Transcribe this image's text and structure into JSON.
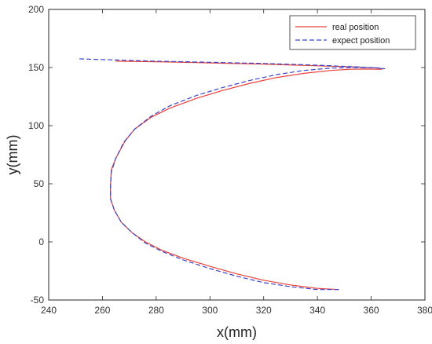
{
  "chart_data": {
    "type": "line",
    "title": "",
    "xlabel": "x(mm)",
    "ylabel": "y(mm)",
    "xlim": [
      240,
      380
    ],
    "ylim": [
      -50,
      200
    ],
    "xticks": [
      240,
      260,
      280,
      300,
      320,
      340,
      360,
      380
    ],
    "yticks": [
      -50,
      0,
      50,
      100,
      150,
      200
    ],
    "grid": false,
    "legend_position": "top-right",
    "series": [
      {
        "name": "real position",
        "color": "#e8403a",
        "style": "solid",
        "x": [
          348,
          340,
          330,
          320,
          310,
          300,
          290,
          282,
          276,
          271,
          267,
          264.5,
          263,
          263,
          263.3,
          265,
          268.5,
          272,
          278,
          285,
          295,
          305,
          315,
          325,
          335,
          345,
          352,
          358,
          362,
          364,
          363,
          355,
          340,
          320,
          300,
          280,
          265
        ],
        "y": [
          -41,
          -40,
          -37,
          -33,
          -27.5,
          -21,
          -14,
          -7,
          0,
          8,
          17,
          27,
          37,
          48,
          62,
          72,
          87,
          97,
          107,
          115,
          123.5,
          130.5,
          136.5,
          141.5,
          145,
          147.5,
          148.5,
          148.7,
          148.5,
          148.5,
          149.5,
          150.5,
          151.5,
          153,
          154,
          155,
          155.5
        ]
      },
      {
        "name": "expect position",
        "color": "#3b45c8",
        "style": "dashed",
        "x": [
          348,
          340,
          330,
          320,
          310,
          300,
          290,
          282,
          276,
          271,
          267,
          264.5,
          263,
          263,
          263.3,
          265,
          268,
          272,
          278,
          285,
          295,
          305,
          315,
          325,
          335,
          345,
          352,
          358,
          362,
          365,
          360,
          350,
          340,
          320,
          300,
          280,
          265,
          251
        ],
        "y": [
          -41,
          -41,
          -38.5,
          -35,
          -29.5,
          -23,
          -15.5,
          -8,
          -1,
          8,
          17,
          27,
          37,
          48,
          60,
          72,
          86,
          97,
          108,
          117,
          126,
          133,
          139,
          144,
          147.5,
          149.5,
          150,
          150,
          149.8,
          149,
          150,
          151,
          152,
          153.5,
          154.5,
          155.5,
          156.5,
          157.5
        ]
      }
    ]
  }
}
